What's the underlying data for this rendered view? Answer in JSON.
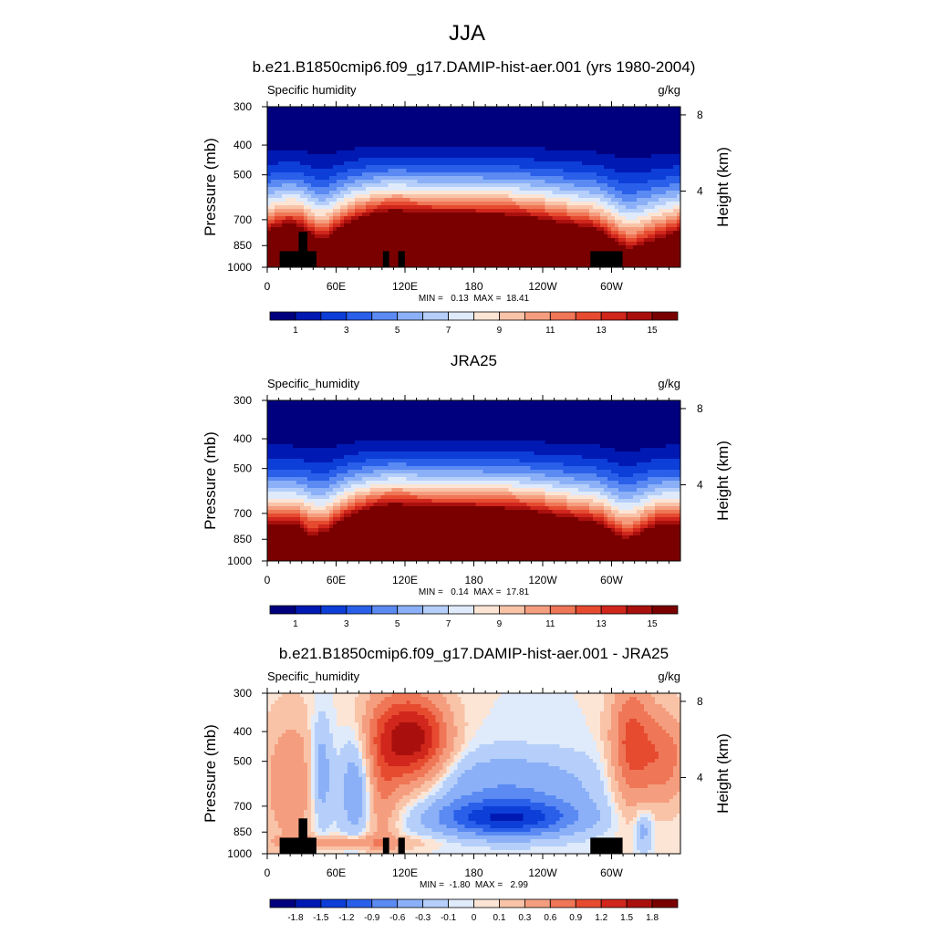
{
  "figure": {
    "title": "JJA"
  },
  "colors": {
    "cmap": [
      "#00007f",
      "#0019b3",
      "#0d3ed8",
      "#2a5fea",
      "#5a8af2",
      "#8bb0f7",
      "#b5cffa",
      "#dfeafb",
      "#fce5d5",
      "#f9c3a8",
      "#f59e7f",
      "#ef7656",
      "#e64b30",
      "#d0261c",
      "#a9100d",
      "#7a0000"
    ]
  },
  "chart_data": [
    {
      "type": "contour",
      "title": "b.e21.B1850cmip6.f09_g17.DAMIP-hist-aer.001 (yrs 1980-2004)",
      "left_label": "Specific humidity",
      "right_label": "g/kg",
      "ylabel": "Pressure (mb)",
      "y2label": "Height (km)",
      "x_ticks": [
        "0",
        "60E",
        "120E",
        "180",
        "120W",
        "60W"
      ],
      "y_ticks": [
        "300",
        "400",
        "500",
        "700",
        "850",
        "1000"
      ],
      "y2_ticks": [
        "8",
        "4"
      ],
      "stats": "MIN =   0.13  MAX =  18.41",
      "min": 0.13,
      "max": 18.41,
      "colorbar_labels": [
        "1",
        "3",
        "5",
        "7",
        "9",
        "11",
        "13",
        "15"
      ],
      "grid": false
    },
    {
      "type": "contour",
      "title": "JRA25",
      "left_label": "Specific_humidity",
      "right_label": "g/kg",
      "ylabel": "Pressure (mb)",
      "y2label": "Height (km)",
      "x_ticks": [
        "0",
        "60E",
        "120E",
        "180",
        "120W",
        "60W"
      ],
      "y_ticks": [
        "300",
        "400",
        "500",
        "700",
        "850",
        "1000"
      ],
      "y2_ticks": [
        "8",
        "4"
      ],
      "stats": "MIN =   0.14  MAX =  17.81",
      "min": 0.14,
      "max": 17.81,
      "colorbar_labels": [
        "1",
        "3",
        "5",
        "7",
        "9",
        "11",
        "13",
        "15"
      ],
      "grid": false
    },
    {
      "type": "contour",
      "title": "b.e21.B1850cmip6.f09_g17.DAMIP-hist-aer.001 - JRA25",
      "left_label": "Specific_humidity",
      "right_label": "g/kg",
      "ylabel": "Pressure (mb)",
      "y2label": "Height (km)",
      "x_ticks": [
        "0",
        "60E",
        "120E",
        "180",
        "120W",
        "60W"
      ],
      "y_ticks": [
        "300",
        "400",
        "500",
        "700",
        "850",
        "1000"
      ],
      "y2_ticks": [
        "8",
        "4"
      ],
      "stats": "MIN =  -1.80  MAX =   2.99",
      "min": -1.8,
      "max": 2.99,
      "colorbar_labels": [
        "-1.8",
        "-1.5",
        "-1.2",
        "-0.9",
        "-0.6",
        "-0.3",
        "-0.1",
        "0",
        "0.1",
        "0.3",
        "0.6",
        "0.9",
        "1.2",
        "1.5",
        "1.8"
      ],
      "grid": false
    }
  ]
}
